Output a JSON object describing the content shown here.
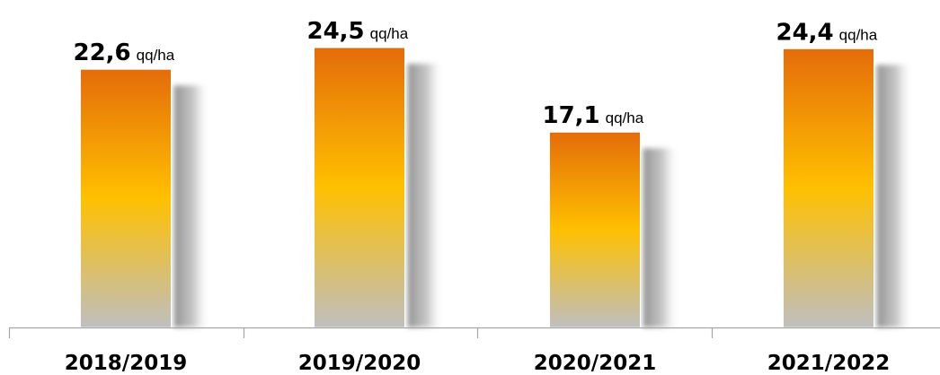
{
  "chart_data": {
    "type": "bar",
    "categories": [
      "2018/2019",
      "2019/2020",
      "2020/2021",
      "2021/2022"
    ],
    "values": [
      22.6,
      24.5,
      17.1,
      24.4
    ],
    "value_labels": [
      "22,6",
      "24,5",
      "17,1",
      "24,4"
    ],
    "unit": "qq/ha",
    "title": "",
    "xlabel": "",
    "ylabel": "",
    "ylim": [
      0,
      24.5
    ],
    "grid": false,
    "colors": {
      "top": "#E46C0A",
      "middle": "#FFC000",
      "bottom": "#BFBFBF",
      "shadow": "#A6A6A6",
      "axis": "#A6A6A6"
    }
  }
}
